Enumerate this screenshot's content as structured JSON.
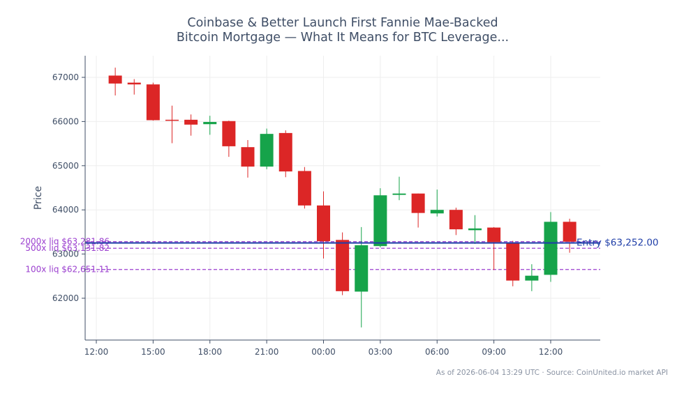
{
  "chart_data": {
    "type": "candlestick",
    "title_lines": [
      "Coinbase & Better Launch First Fannie Mae-Backed",
      "Bitcoin Mortgage — What It Means for BTC Leverage..."
    ],
    "ylabel": "Price",
    "xlabel": "",
    "ylim": [
      61050,
      67500
    ],
    "yticks": [
      62000,
      63000,
      64000,
      65000,
      66000,
      67000
    ],
    "x_tick_labels": [
      "12:00",
      "15:00",
      "18:00",
      "21:00",
      "00:00",
      "03:00",
      "06:00",
      "09:00",
      "12:00"
    ],
    "x_tick_hours": [
      0,
      3,
      6,
      9,
      12,
      15,
      18,
      21,
      24
    ],
    "grid": true,
    "colors": {
      "up": "#16a34a",
      "down": "#dc2626",
      "entry": "#1f3ea8",
      "liq": "#9b3fcf",
      "axis": "#3f4e66",
      "grid": "#eeeeee"
    },
    "candles": [
      {
        "hour": 1,
        "open": 67040,
        "high": 67220,
        "low": 66590,
        "close": 66860
      },
      {
        "hour": 2,
        "open": 66880,
        "high": 66960,
        "low": 66610,
        "close": 66840
      },
      {
        "hour": 3,
        "open": 66840,
        "high": 66880,
        "low": 66020,
        "close": 66030
      },
      {
        "hour": 4,
        "open": 66040,
        "high": 66360,
        "low": 65510,
        "close": 66030
      },
      {
        "hour": 5,
        "open": 66040,
        "high": 66160,
        "low": 65680,
        "close": 65930
      },
      {
        "hour": 6,
        "open": 65940,
        "high": 66130,
        "low": 65700,
        "close": 65990
      },
      {
        "hour": 7,
        "open": 66010,
        "high": 66020,
        "low": 65200,
        "close": 65440
      },
      {
        "hour": 8,
        "open": 65420,
        "high": 65580,
        "low": 64730,
        "close": 64980
      },
      {
        "hour": 9,
        "open": 64980,
        "high": 65840,
        "low": 64920,
        "close": 65720
      },
      {
        "hour": 10,
        "open": 65740,
        "high": 65800,
        "low": 64740,
        "close": 64870
      },
      {
        "hour": 11,
        "open": 64880,
        "high": 64970,
        "low": 64030,
        "close": 64100
      },
      {
        "hour": 12,
        "open": 64100,
        "high": 64420,
        "low": 62900,
        "close": 63290
      },
      {
        "hour": 13,
        "open": 63320,
        "high": 63490,
        "low": 62070,
        "close": 62160
      },
      {
        "hour": 14,
        "open": 62150,
        "high": 63610,
        "low": 61340,
        "close": 63200
      },
      {
        "hour": 15,
        "open": 63180,
        "high": 64490,
        "low": 63150,
        "close": 64330
      },
      {
        "hour": 16,
        "open": 64340,
        "high": 64750,
        "low": 64220,
        "close": 64370
      },
      {
        "hour": 17,
        "open": 64370,
        "high": 64370,
        "low": 63600,
        "close": 63930
      },
      {
        "hour": 18,
        "open": 63920,
        "high": 64460,
        "low": 63850,
        "close": 64000
      },
      {
        "hour": 19,
        "open": 64000,
        "high": 64050,
        "low": 63430,
        "close": 63560
      },
      {
        "hour": 20,
        "open": 63540,
        "high": 63880,
        "low": 63230,
        "close": 63580
      },
      {
        "hour": 21,
        "open": 63600,
        "high": 63610,
        "low": 62640,
        "close": 63270
      },
      {
        "hour": 22,
        "open": 63260,
        "high": 63300,
        "low": 62270,
        "close": 62400
      },
      {
        "hour": 23,
        "open": 62400,
        "high": 62770,
        "low": 62160,
        "close": 62510
      },
      {
        "hour": 24,
        "open": 62530,
        "high": 63950,
        "low": 62370,
        "close": 63730
      },
      {
        "hour": 25,
        "open": 63730,
        "high": 63800,
        "low": 63030,
        "close": 63280
      }
    ],
    "entry": {
      "value": 63252.0,
      "label": "Entry $63,252.00"
    },
    "liquidations": [
      {
        "value": 63281.86,
        "label": "2000x liq $63,281.86"
      },
      {
        "value": 63131.82,
        "label": "500x liq $63,131.82"
      },
      {
        "value": 62651.11,
        "label": "100x liq $62,651.11"
      }
    ]
  },
  "footer": "As of 2026-06-04 13:29 UTC · Source: CoinUnited.io market API"
}
